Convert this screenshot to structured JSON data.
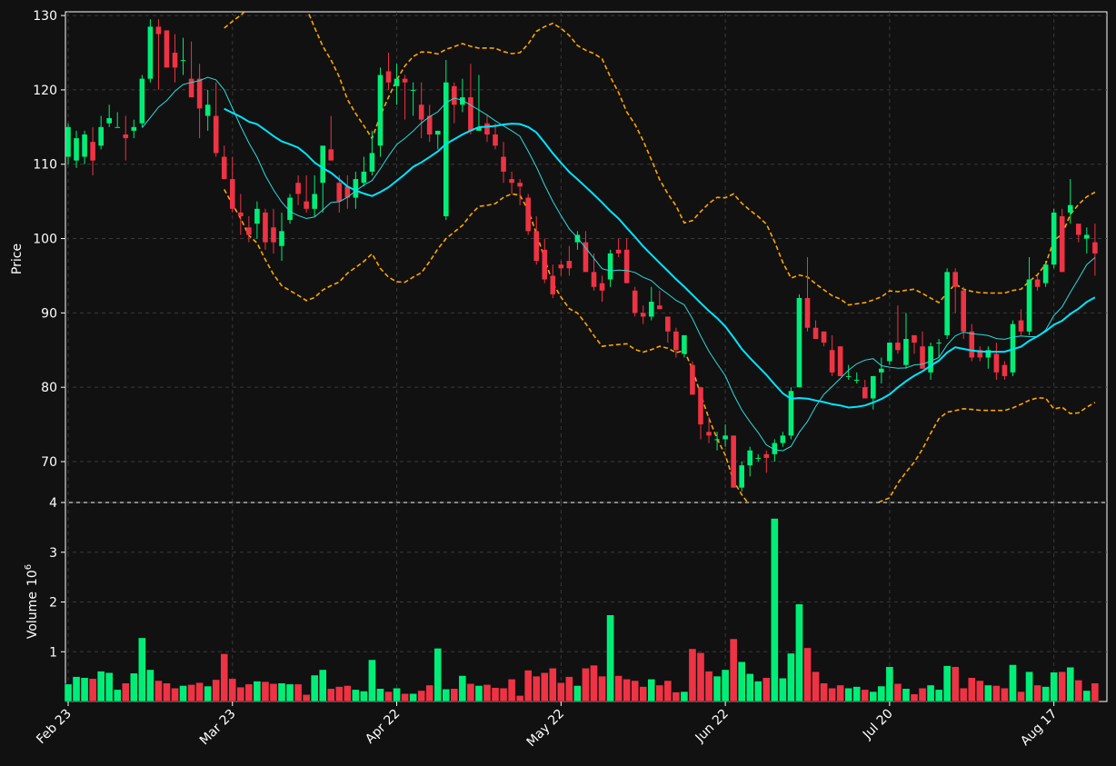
{
  "chart_data": {
    "type": "candlestick",
    "price_panel": {
      "ylabel": "Price",
      "ylim": [
        64.5,
        130.5
      ],
      "yticks": [
        70,
        80,
        90,
        100,
        110,
        120,
        130
      ],
      "grid": true
    },
    "volume_panel": {
      "ylabel": "Volume",
      "ylabel_exponent": "10",
      "ylabel_exponent_power": "6",
      "ylim": [
        0,
        4
      ],
      "yticks": [
        1,
        2,
        3,
        4
      ],
      "grid": true
    },
    "xticks": [
      {
        "label": "Feb 23",
        "index": 0
      },
      {
        "label": "Mar 23",
        "index": 20
      },
      {
        "label": "Apr 22",
        "index": 40
      },
      {
        "label": "May 22",
        "index": 60
      },
      {
        "label": "Jun 22",
        "index": 80
      },
      {
        "label": "Jul 20",
        "index": 100
      },
      {
        "label": "Aug 17",
        "index": 120
      }
    ],
    "colors": {
      "up": "#00ee77",
      "down": "#ee3344",
      "background": "#111111",
      "grid": "#3a3a3a",
      "ma_fast": "#30d8d8",
      "ma_slow": "#00e5ff",
      "bands": "#ffa500"
    },
    "candles_ohlc": [
      [
        111,
        115.5,
        110,
        115
      ],
      [
        110.5,
        114.5,
        109.5,
        113.5
      ],
      [
        111,
        114.5,
        110,
        114
      ],
      [
        113,
        115,
        108.5,
        110.5
      ],
      [
        112.5,
        116.5,
        112,
        115
      ],
      [
        115.5,
        118,
        115,
        116.2
      ],
      [
        115,
        117,
        115,
        115
      ],
      [
        114,
        116.5,
        110.5,
        113.5
      ],
      [
        114.5,
        116,
        113.5,
        115
      ],
      [
        115.5,
        122,
        115,
        121.5
      ],
      [
        121.5,
        129.5,
        121,
        128.5
      ],
      [
        128.5,
        129.5,
        120,
        127.5
      ],
      [
        128,
        128,
        123.5,
        123
      ],
      [
        125,
        127.5,
        121,
        123
      ],
      [
        124,
        127,
        122,
        124
      ],
      [
        121.5,
        126.5,
        120.5,
        119
      ],
      [
        121.5,
        123.5,
        113.5,
        117.5
      ],
      [
        116.5,
        120,
        114.5,
        118
      ],
      [
        116.5,
        121,
        111,
        111.5
      ],
      [
        111,
        112.5,
        108,
        108
      ],
      [
        108,
        111,
        103.5,
        104
      ],
      [
        103.5,
        106,
        100.5,
        103
      ],
      [
        101.5,
        103,
        99.5,
        100.5
      ],
      [
        102,
        105,
        100,
        104
      ],
      [
        103.5,
        104,
        98.5,
        99.5
      ],
      [
        101.5,
        104,
        98,
        99.5
      ],
      [
        99,
        103.5,
        97,
        101
      ],
      [
        102.5,
        106,
        102,
        105.5
      ],
      [
        107.5,
        108.5,
        104.5,
        106
      ],
      [
        105,
        108.5,
        103.5,
        104
      ],
      [
        104,
        108.5,
        103,
        106
      ],
      [
        107.5,
        111.5,
        103.5,
        112.5
      ],
      [
        112,
        116.5,
        111,
        110.5
      ],
      [
        107.5,
        108.5,
        103.5,
        105
      ],
      [
        107,
        108.5,
        104,
        105.5
      ],
      [
        105.5,
        109,
        104,
        108
      ],
      [
        107.5,
        111,
        107,
        109
      ],
      [
        109,
        114.5,
        108.5,
        111.5
      ],
      [
        112.5,
        123,
        111,
        122
      ],
      [
        122.5,
        125,
        120,
        121
      ],
      [
        120.5,
        123.5,
        118,
        121.5
      ],
      [
        121.5,
        122,
        116,
        121
      ],
      [
        120,
        121,
        116.5,
        120
      ],
      [
        118,
        121,
        113.5,
        116
      ],
      [
        116.5,
        118,
        113,
        114
      ],
      [
        114,
        114.5,
        112,
        114.5
      ],
      [
        103,
        124,
        102.5,
        121
      ],
      [
        120.5,
        121,
        115.5,
        118
      ],
      [
        118,
        121.5,
        117,
        119
      ],
      [
        119,
        123.5,
        114,
        114.5
      ],
      [
        114.5,
        122,
        114.5,
        115
      ],
      [
        115.5,
        116.5,
        113,
        114
      ],
      [
        114,
        115.5,
        112,
        112.5
      ],
      [
        111,
        113,
        107.5,
        109
      ],
      [
        108,
        109,
        106,
        107.5
      ],
      [
        107.5,
        108,
        104.5,
        107
      ],
      [
        105.5,
        106,
        100.5,
        101
      ],
      [
        101,
        103,
        96.5,
        97
      ],
      [
        98.5,
        100,
        94,
        94.5
      ],
      [
        95,
        96.5,
        92,
        92.5
      ],
      [
        96.5,
        97,
        95,
        96
      ],
      [
        97,
        99,
        95,
        96
      ],
      [
        99.5,
        101,
        98.5,
        100.5
      ],
      [
        99.5,
        101,
        96,
        95.5
      ],
      [
        95.5,
        98,
        93,
        93.5
      ],
      [
        94,
        95,
        91.5,
        93
      ],
      [
        94.5,
        98.5,
        93.5,
        98
      ],
      [
        98.5,
        100,
        97.5,
        98
      ],
      [
        98.5,
        100,
        94,
        94
      ],
      [
        93,
        93.5,
        89.5,
        90
      ],
      [
        90,
        91,
        88.5,
        89.5
      ],
      [
        89.5,
        93.5,
        89,
        91.5
      ],
      [
        91,
        93,
        90.5,
        90.5
      ],
      [
        89.5,
        89.5,
        86,
        87.5
      ],
      [
        87.5,
        88,
        84,
        85
      ],
      [
        84.5,
        87,
        84,
        87
      ],
      [
        83,
        83.5,
        79,
        79
      ],
      [
        80,
        80,
        73,
        75
      ],
      [
        74,
        76,
        72.5,
        73.5
      ],
      [
        73,
        74,
        71.5,
        73
      ],
      [
        73,
        75,
        72,
        73.5
      ],
      [
        73.5,
        73.5,
        66.5,
        66.5
      ],
      [
        66.5,
        70,
        66,
        69.5
      ],
      [
        69.5,
        72,
        68,
        71.5
      ],
      [
        70.5,
        71,
        70,
        70.5
      ],
      [
        71,
        71.5,
        68.5,
        70.5
      ],
      [
        71,
        73,
        70,
        72.5
      ],
      [
        72.5,
        74,
        72,
        73.5
      ],
      [
        73.5,
        80,
        73,
        79.5
      ],
      [
        80,
        92.5,
        80,
        92
      ],
      [
        92,
        97.5,
        87.5,
        88
      ],
      [
        88,
        89,
        86.5,
        86.5
      ],
      [
        87.5,
        87.5,
        85.5,
        86
      ],
      [
        85,
        87,
        81.5,
        82
      ],
      [
        85.5,
        85.5,
        81.5,
        81.5
      ],
      [
        81.5,
        83,
        81,
        81.5
      ],
      [
        81,
        82,
        80.5,
        81
      ],
      [
        80,
        81,
        79,
        78.5
      ],
      [
        78.5,
        81.5,
        77,
        81.5
      ],
      [
        82,
        84,
        80.5,
        82.5
      ],
      [
        83.5,
        86,
        83,
        86
      ],
      [
        86,
        91,
        84.5,
        85
      ],
      [
        83,
        90,
        82.5,
        86.5
      ],
      [
        87,
        87,
        84.5,
        86
      ],
      [
        85.5,
        87.5,
        82.5,
        82.5
      ],
      [
        82,
        86,
        81,
        85.5
      ],
      [
        86,
        86.5,
        84,
        86
      ],
      [
        87,
        96,
        86.5,
        95.5
      ],
      [
        95.5,
        96,
        90,
        93.5
      ],
      [
        93,
        93.5,
        86.5,
        87.5
      ],
      [
        87.5,
        88.5,
        83.5,
        84
      ],
      [
        85,
        85.5,
        83.5,
        84
      ],
      [
        84,
        85.5,
        82.5,
        85
      ],
      [
        84.5,
        86,
        81,
        82
      ],
      [
        83,
        83.5,
        81,
        81.5
      ],
      [
        82,
        89,
        81.5,
        88.5
      ],
      [
        89,
        90.5,
        87,
        87.5
      ],
      [
        87.5,
        97.5,
        87,
        94.5
      ],
      [
        94.5,
        95,
        93,
        93.5
      ],
      [
        94,
        97,
        93.5,
        96.5
      ],
      [
        96.5,
        104,
        96,
        103.5
      ],
      [
        103,
        104,
        95.5,
        95.5
      ],
      [
        103.5,
        108,
        102,
        104.5
      ],
      [
        102,
        102,
        99.5,
        100.5
      ],
      [
        100,
        101.5,
        98,
        100.5
      ],
      [
        99.5,
        102,
        95,
        98
      ]
    ],
    "volume_millions": [
      0.35,
      0.5,
      0.48,
      0.46,
      0.61,
      0.58,
      0.24,
      0.37,
      0.57,
      1.28,
      0.64,
      0.42,
      0.37,
      0.27,
      0.32,
      0.34,
      0.38,
      0.31,
      0.44,
      0.96,
      0.46,
      0.29,
      0.35,
      0.41,
      0.4,
      0.36,
      0.37,
      0.35,
      0.35,
      0.14,
      0.53,
      0.64,
      0.26,
      0.3,
      0.32,
      0.24,
      0.21,
      0.84,
      0.26,
      0.2,
      0.27,
      0.16,
      0.16,
      0.22,
      0.33,
      1.07,
      0.25,
      0.26,
      0.52,
      0.36,
      0.32,
      0.34,
      0.28,
      0.27,
      0.45,
      0.12,
      0.63,
      0.51,
      0.58,
      0.67,
      0.38,
      0.5,
      0.32,
      0.67,
      0.73,
      0.51,
      1.74,
      0.52,
      0.45,
      0.42,
      0.3,
      0.45,
      0.33,
      0.42,
      0.19,
      0.2,
      1.06,
      0.98,
      0.61,
      0.51,
      0.64,
      1.26,
      0.8,
      0.56,
      0.41,
      0.48,
      3.68,
      0.47,
      0.97,
      1.96,
      1.08,
      0.6,
      0.37,
      0.27,
      0.33,
      0.27,
      0.3,
      0.24,
      0.2,
      0.31,
      0.7,
      0.36,
      0.26,
      0.15,
      0.27,
      0.33,
      0.24,
      0.72,
      0.7,
      0.27,
      0.48,
      0.42,
      0.33,
      0.32,
      0.27,
      0.74,
      0.2,
      0.6,
      0.33,
      0.3,
      0.59,
      0.6,
      0.69,
      0.43,
      0.22,
      0.37
    ]
  }
}
